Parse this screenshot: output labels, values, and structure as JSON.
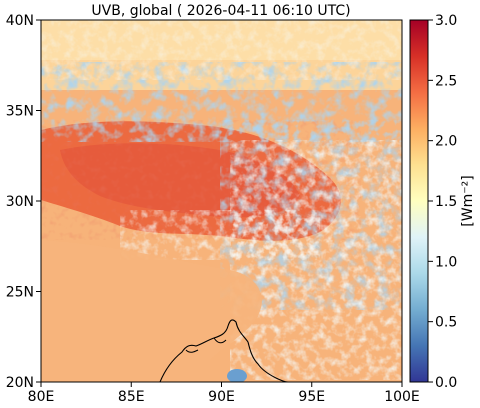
{
  "title": "UVB, global ( 2026-04-11 06:10 UTC)",
  "map": {
    "lon_ticks": [
      "80E",
      "85E",
      "90E",
      "95E",
      "100E"
    ],
    "lat_ticks": [
      "20N",
      "25N",
      "30N",
      "35N",
      "40N"
    ],
    "lon_range": [
      80,
      100
    ],
    "lat_range": [
      20,
      40
    ]
  },
  "colorbar": {
    "label": "[Wm⁻²]",
    "ticks": [
      "0.0",
      "0.5",
      "1.0",
      "1.5",
      "2.0",
      "2.5",
      "3.0"
    ],
    "range": [
      0.0,
      3.0
    ],
    "colormap": "RdYlBu_r",
    "colors": [
      "#313695",
      "#4575b4",
      "#74add1",
      "#abd9e9",
      "#e0f3f8",
      "#ffffbf",
      "#fee090",
      "#fdae61",
      "#f46d43",
      "#d73027",
      "#a50026"
    ]
  },
  "field_colors": {
    "plains": "#f7b37a",
    "plateau": "#ec6a40",
    "cloud_blue": "#7fb0d6",
    "cloud_light": "#e6f3f7",
    "north_pale": "#fddca0",
    "coastline": "#000000"
  }
}
